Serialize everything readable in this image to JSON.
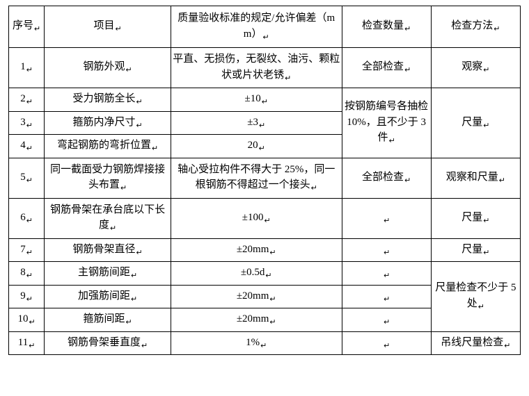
{
  "table": {
    "headers": {
      "seq": "序号",
      "item": "项目",
      "std": "质量验收标准的规定/允许偏差（mm）",
      "qty": "检查数量",
      "method": "检查方法"
    },
    "rows": {
      "r1": {
        "seq": "1",
        "item": "钢筋外观",
        "std": "平直、无损伤，无裂纹、油污、颗粒状或片状老锈",
        "qty": "全部检查",
        "method": "观察"
      },
      "r2": {
        "seq": "2",
        "item": "受力钢筋全长",
        "std": "±10"
      },
      "r3": {
        "seq": "3",
        "item": "箍筋内净尺寸",
        "std": "±3"
      },
      "r4": {
        "seq": "4",
        "item": "弯起钢筋的弯折位置",
        "std": "20"
      },
      "merge_2_4": {
        "qty": "按钢筋编号各抽检 10%，且不少于 3 件",
        "method": "尺量"
      },
      "r5": {
        "seq": "5",
        "item": "同一截面受力钢筋焊接接头布置",
        "std": "轴心受拉构件不得大于 25%，同一根钢筋不得超过一个接头",
        "qty": "全部检查",
        "method": "观察和尺量"
      },
      "r6": {
        "seq": "6",
        "item": "钢筋骨架在承台底以下长度",
        "std": "±100",
        "qty": "",
        "method": "尺量"
      },
      "r7": {
        "seq": "7",
        "item": "钢筋骨架直径",
        "std": "±20mm",
        "qty": "",
        "method": "尺量"
      },
      "r8": {
        "seq": "8",
        "item": "主钢筋间距",
        "std": "±0.5d",
        "qty": ""
      },
      "r9": {
        "seq": "9",
        "item": "加强筋间距",
        "std": "±20mm",
        "qty": ""
      },
      "r10": {
        "seq": "10",
        "item": "箍筋间距",
        "std": "±20mm",
        "qty": ""
      },
      "merge_8_10": {
        "method": "尺量检查不少于 5 处"
      },
      "r11": {
        "seq": "11",
        "item": "钢筋骨架垂直度",
        "std": "1%",
        "qty": "",
        "method": "吊线尺量检查"
      }
    }
  },
  "style": {
    "font_family": "SimSun",
    "font_size_pt": 11,
    "border_color": "#000000",
    "background": "#ffffff",
    "text_color": "#000000",
    "mark_glyph": "↵"
  }
}
